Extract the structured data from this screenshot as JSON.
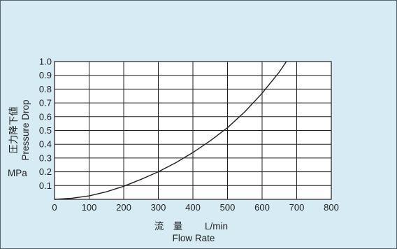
{
  "colors": {
    "background": "#d6ebf4",
    "plot_area": "#ffffff",
    "grid": "#1f1f1f",
    "curve": "#1f1f1f"
  },
  "chart_data": {
    "type": "line",
    "xlabel_jp": "流　量",
    "xlabel_unit": "L/min",
    "xlabel_en": "Flow Rate",
    "ylabel_jp": "圧力降下値",
    "ylabel_en": "Pressure Drop",
    "ylabel_unit": "MPa",
    "xlim": [
      0,
      800
    ],
    "ylim": [
      0,
      1.0
    ],
    "x_ticks": [
      0,
      100,
      200,
      300,
      400,
      500,
      600,
      700,
      800
    ],
    "x_tick_labels": [
      "0",
      "100",
      "200",
      "300",
      "400",
      "500",
      "600",
      "700",
      "800"
    ],
    "y_ticks": [
      0.1,
      0.2,
      0.3,
      0.4,
      0.5,
      0.6,
      0.7,
      0.8,
      0.9,
      1.0
    ],
    "y_tick_labels": [
      "0.1",
      "0.2",
      "0.3",
      "0.4",
      "0.5",
      "0.6",
      "0.7",
      "0.8",
      "0.9",
      "1.0"
    ],
    "grid": true,
    "series": [
      {
        "x": [
          0,
          50,
          100,
          150,
          200,
          250,
          300,
          350,
          400,
          450,
          500,
          550,
          600,
          650,
          670
        ],
        "y": [
          0,
          0.008,
          0.025,
          0.055,
          0.095,
          0.145,
          0.2,
          0.265,
          0.34,
          0.425,
          0.52,
          0.635,
          0.77,
          0.925,
          1.0
        ]
      }
    ]
  }
}
